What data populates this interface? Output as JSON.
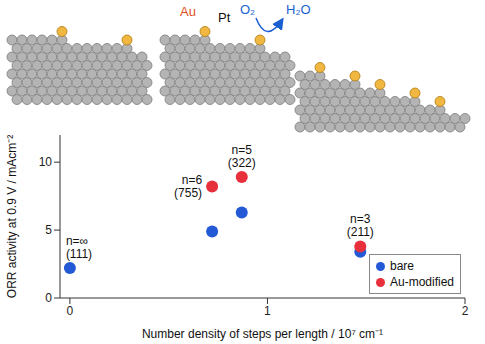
{
  "chart_data": {
    "type": "scatter",
    "x_label": "Number density of steps per length / 10⁷ cm⁻¹",
    "y_label": "ORR activity at 0.9 V / mAcm⁻²",
    "xlim": [
      -0.05,
      2
    ],
    "xticks": [
      0,
      1,
      2
    ],
    "ylim": [
      0,
      12
    ],
    "yticks": [
      0,
      5,
      10
    ],
    "grid": false,
    "legend": "lower right",
    "marker": "circle",
    "series": [
      {
        "name": "bare",
        "color": "#2459d6",
        "x": [
          0,
          0.72,
          0.87,
          1.47
        ],
        "values": [
          2.2,
          4.9,
          6.3,
          3.4
        ]
      },
      {
        "name": "Au-modified",
        "color": "#e8303c",
        "x": [
          0.72,
          0.87,
          1.47
        ],
        "values": [
          8.2,
          8.9,
          3.8
        ]
      }
    ],
    "annotations": [
      {
        "text": [
          "n=∞",
          "(111)"
        ],
        "x": 0
      },
      {
        "text": [
          "n=6",
          "(755)"
        ],
        "x": 0.72
      },
      {
        "text": [
          "n=5",
          "(322)"
        ],
        "x": 0.87
      },
      {
        "text": [
          "n=3",
          "(211)"
        ],
        "x": 1.47
      }
    ]
  },
  "illustration": {
    "adsorbate": "Au",
    "substrate": "Pt",
    "reactant": "O₂",
    "product": "H₂O"
  }
}
